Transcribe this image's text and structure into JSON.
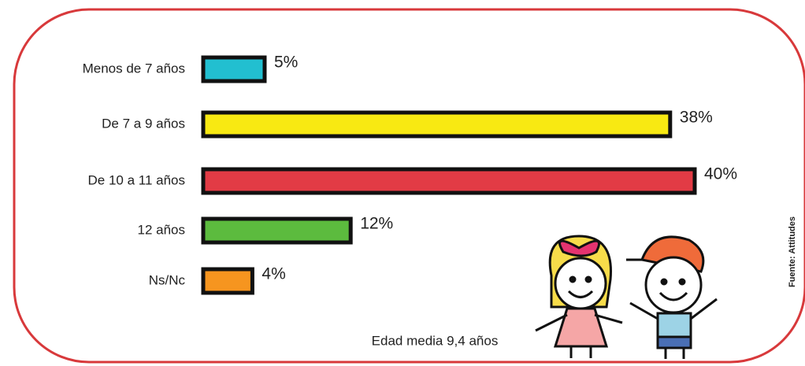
{
  "chart_data": {
    "type": "bar",
    "orientation": "horizontal",
    "categories": [
      "Menos de 7 años",
      "De 7 a 9 años",
      "De 10  a 11 años",
      "12 años",
      "Ns/Nc"
    ],
    "values": [
      5,
      38,
      40,
      12,
      4
    ],
    "value_labels": [
      "5%",
      "38%",
      "40%",
      "12%",
      "4%"
    ],
    "colors": [
      "#22bfd0",
      "#f8e912",
      "#e23b45",
      "#5cbb3e",
      "#f6951f"
    ],
    "annotation": "Edad media 9,4 años",
    "source": "Fuente: Attitudes"
  }
}
